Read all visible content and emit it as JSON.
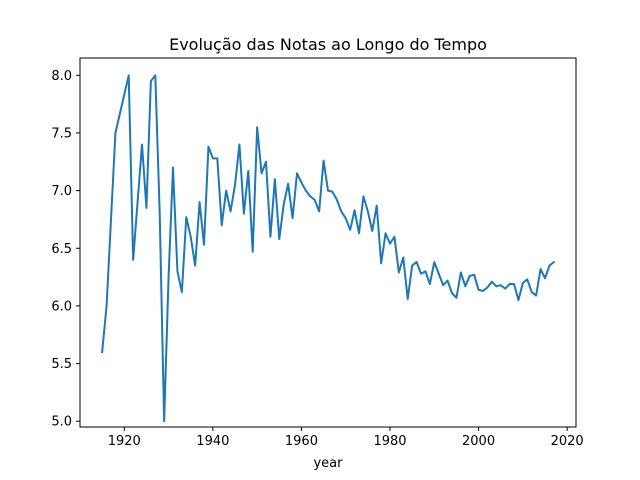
{
  "chart_data": {
    "type": "line",
    "title": "Evolução das Notas ao Longo do Tempo",
    "xlabel": "year",
    "ylabel": "",
    "xlim": [
      1910,
      2022
    ],
    "ylim": [
      4.95,
      8.15
    ],
    "xticks": [
      1920,
      1940,
      1960,
      1980,
      2000,
      2020
    ],
    "yticks": [
      5.0,
      5.5,
      6.0,
      6.5,
      7.0,
      7.5,
      8.0
    ],
    "x_tick_labels": [
      "1920",
      "1940",
      "1960",
      "1980",
      "2000",
      "2020"
    ],
    "y_tick_labels": [
      "5.0",
      "5.5",
      "6.0",
      "6.5",
      "7.0",
      "7.5",
      "8.0"
    ],
    "grid": false,
    "series": [
      {
        "color": "#1f77b4",
        "x": [
          1915,
          1916,
          1918,
          1921,
          1922,
          1924,
          1925,
          1926,
          1927,
          1928,
          1929,
          1930,
          1931,
          1932,
          1933,
          1934,
          1935,
          1936,
          1937,
          1938,
          1939,
          1940,
          1941,
          1942,
          1943,
          1944,
          1945,
          1946,
          1947,
          1948,
          1949,
          1950,
          1951,
          1952,
          1953,
          1954,
          1955,
          1956,
          1957,
          1958,
          1959,
          1960,
          1961,
          1962,
          1963,
          1964,
          1965,
          1966,
          1967,
          1968,
          1969,
          1970,
          1971,
          1972,
          1973,
          1974,
          1975,
          1976,
          1977,
          1978,
          1979,
          1980,
          1981,
          1982,
          1983,
          1984,
          1985,
          1986,
          1987,
          1988,
          1989,
          1990,
          1991,
          1992,
          1993,
          1994,
          1995,
          1996,
          1997,
          1998,
          1999,
          2000,
          2001,
          2002,
          2003,
          2004,
          2005,
          2006,
          2007,
          2008,
          2009,
          2010,
          2011,
          2012,
          2013,
          2014,
          2015,
          2016,
          2017
        ],
        "y": [
          5.6,
          6.0,
          7.5,
          8.0,
          6.4,
          7.4,
          6.85,
          7.95,
          8.0,
          6.8,
          5.0,
          6.25,
          7.2,
          6.3,
          6.12,
          6.77,
          6.6,
          6.35,
          6.9,
          6.53,
          7.38,
          7.28,
          7.28,
          6.7,
          7.0,
          6.82,
          7.05,
          7.4,
          6.8,
          7.17,
          6.47,
          7.55,
          7.15,
          7.25,
          6.6,
          7.1,
          6.58,
          6.88,
          7.06,
          6.76,
          7.15,
          7.07,
          7.0,
          6.95,
          6.92,
          6.82,
          7.26,
          7.0,
          6.99,
          6.92,
          6.82,
          6.76,
          6.66,
          6.83,
          6.63,
          6.95,
          6.82,
          6.65,
          6.87,
          6.37,
          6.63,
          6.54,
          6.6,
          6.29,
          6.42,
          6.06,
          6.35,
          6.38,
          6.28,
          6.3,
          6.19,
          6.38,
          6.28,
          6.18,
          6.22,
          6.11,
          6.07,
          6.29,
          6.17,
          6.26,
          6.27,
          6.14,
          6.13,
          6.16,
          6.21,
          6.17,
          6.18,
          6.15,
          6.19,
          6.19,
          6.05,
          6.2,
          6.23,
          6.12,
          6.09,
          6.32,
          6.24,
          6.35,
          6.38
        ]
      }
    ]
  }
}
